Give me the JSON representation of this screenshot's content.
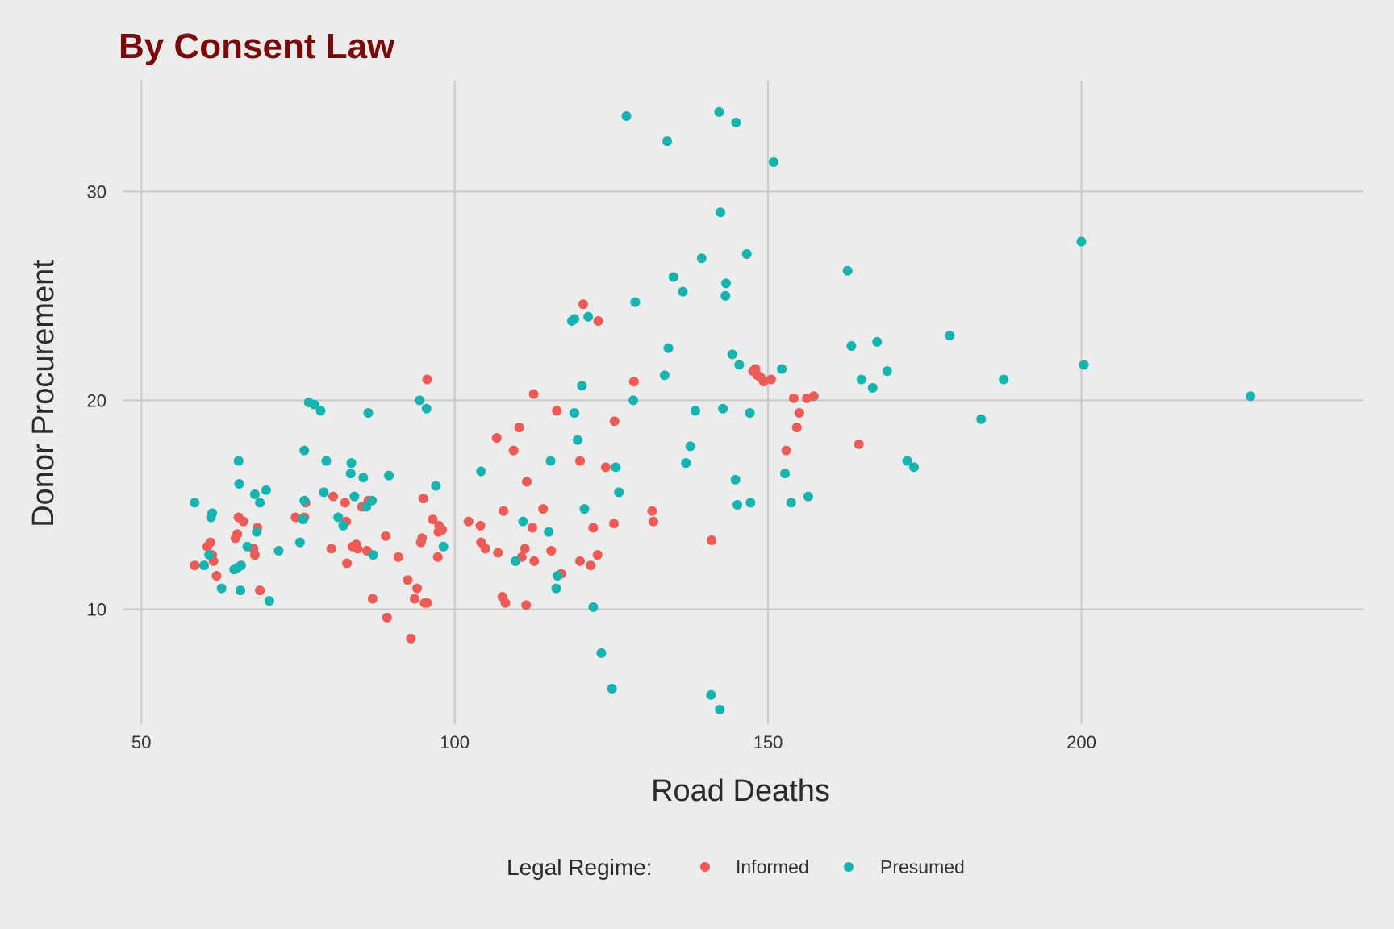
{
  "chart_data": {
    "type": "scatter",
    "title": "By Consent Law",
    "xlabel": "Road Deaths",
    "ylabel": "Donor Procurement",
    "xlim": [
      47,
      245
    ],
    "ylim": [
      4.5,
      35.3
    ],
    "x_ticks": [
      50,
      100,
      150,
      200
    ],
    "y_ticks": [
      10,
      20,
      30
    ],
    "grid": true,
    "legend_position": "bottom",
    "legend_title": "Legal Regime:",
    "colors": {
      "title": "#7a0a0a",
      "Informed": "#ee5b57",
      "Presumed": "#17b3b1"
    },
    "series": [
      {
        "name": "Informed",
        "color": "#ee5b57",
        "points": [
          [
            58.5,
            12.1
          ],
          [
            60.5,
            13.0
          ],
          [
            61.0,
            13.2
          ],
          [
            61.3,
            12.6
          ],
          [
            61.5,
            12.3
          ],
          [
            62.0,
            11.6
          ],
          [
            65.0,
            13.4
          ],
          [
            65.3,
            13.6
          ],
          [
            65.5,
            14.4
          ],
          [
            66.3,
            14.2
          ],
          [
            67.9,
            12.9
          ],
          [
            68.1,
            12.6
          ],
          [
            68.5,
            13.9
          ],
          [
            68.9,
            10.9
          ],
          [
            74.6,
            14.4
          ],
          [
            76.0,
            14.4
          ],
          [
            76.2,
            15.1
          ],
          [
            80.3,
            12.9
          ],
          [
            80.6,
            15.4
          ],
          [
            82.5,
            15.1
          ],
          [
            82.7,
            14.2
          ],
          [
            82.8,
            12.2
          ],
          [
            83.7,
            13.0
          ],
          [
            84.3,
            13.1
          ],
          [
            84.5,
            12.9
          ],
          [
            85.2,
            14.9
          ],
          [
            86.0,
            12.8
          ],
          [
            86.2,
            15.2
          ],
          [
            86.9,
            10.5
          ],
          [
            89.0,
            13.5
          ],
          [
            89.2,
            9.6
          ],
          [
            91.0,
            12.5
          ],
          [
            92.5,
            11.4
          ],
          [
            93.0,
            8.6
          ],
          [
            93.6,
            10.5
          ],
          [
            94.0,
            11.0
          ],
          [
            94.6,
            13.2
          ],
          [
            94.8,
            13.4
          ],
          [
            95.0,
            15.3
          ],
          [
            95.2,
            10.3
          ],
          [
            95.6,
            10.3
          ],
          [
            95.6,
            21.0
          ],
          [
            96.5,
            14.3
          ],
          [
            97.3,
            12.5
          ],
          [
            97.4,
            13.7
          ],
          [
            97.5,
            14.0
          ],
          [
            98.0,
            13.8
          ],
          [
            102.2,
            14.2
          ],
          [
            104.1,
            14.0
          ],
          [
            104.2,
            13.2
          ],
          [
            104.9,
            12.9
          ],
          [
            106.7,
            18.2
          ],
          [
            106.9,
            12.7
          ],
          [
            107.6,
            10.6
          ],
          [
            107.8,
            14.7
          ],
          [
            108.1,
            10.3
          ],
          [
            109.4,
            17.6
          ],
          [
            110.3,
            18.7
          ],
          [
            110.7,
            12.5
          ],
          [
            111.2,
            12.9
          ],
          [
            111.4,
            10.2
          ],
          [
            111.5,
            16.1
          ],
          [
            112.4,
            13.9
          ],
          [
            112.6,
            20.3
          ],
          [
            112.7,
            12.3
          ],
          [
            114.1,
            14.8
          ],
          [
            115.4,
            12.8
          ],
          [
            116.3,
            19.5
          ],
          [
            117.0,
            11.7
          ],
          [
            120.0,
            12.3
          ],
          [
            120.0,
            17.1
          ],
          [
            120.5,
            24.6
          ],
          [
            121.7,
            12.1
          ],
          [
            122.1,
            13.9
          ],
          [
            122.8,
            12.6
          ],
          [
            122.9,
            23.8
          ],
          [
            124.1,
            16.8
          ],
          [
            125.4,
            14.1
          ],
          [
            125.5,
            19.0
          ],
          [
            128.6,
            20.9
          ],
          [
            131.5,
            14.7
          ],
          [
            131.7,
            14.2
          ],
          [
            141.0,
            13.3
          ],
          [
            147.6,
            21.4
          ],
          [
            148.0,
            21.5
          ],
          [
            148.3,
            21.2
          ],
          [
            148.8,
            21.1
          ],
          [
            149.3,
            20.9
          ],
          [
            150.5,
            21.0
          ],
          [
            152.9,
            17.6
          ],
          [
            154.1,
            20.1
          ],
          [
            154.6,
            18.7
          ],
          [
            155.0,
            19.4
          ],
          [
            156.2,
            20.1
          ],
          [
            157.3,
            20.2
          ],
          [
            164.5,
            17.9
          ]
        ]
      },
      {
        "name": "Presumed",
        "color": "#17b3b1",
        "points": [
          [
            58.5,
            15.1
          ],
          [
            60.0,
            12.1
          ],
          [
            60.8,
            12.6
          ],
          [
            61.1,
            14.4
          ],
          [
            61.3,
            14.6
          ],
          [
            62.8,
            11.0
          ],
          [
            64.8,
            11.9
          ],
          [
            65.4,
            12.0
          ],
          [
            65.5,
            17.1
          ],
          [
            65.6,
            16.0
          ],
          [
            65.8,
            10.9
          ],
          [
            65.9,
            12.1
          ],
          [
            66.9,
            13.0
          ],
          [
            68.1,
            15.5
          ],
          [
            68.4,
            13.7
          ],
          [
            68.9,
            15.1
          ],
          [
            69.9,
            15.7
          ],
          [
            70.4,
            10.4
          ],
          [
            71.9,
            12.8
          ],
          [
            75.3,
            13.2
          ],
          [
            75.8,
            14.3
          ],
          [
            76.0,
            15.2
          ],
          [
            76.0,
            17.6
          ],
          [
            76.7,
            19.9
          ],
          [
            77.6,
            19.8
          ],
          [
            78.6,
            19.5
          ],
          [
            79.1,
            15.6
          ],
          [
            79.5,
            17.1
          ],
          [
            81.4,
            14.4
          ],
          [
            82.2,
            14.0
          ],
          [
            83.4,
            16.5
          ],
          [
            83.5,
            17.0
          ],
          [
            84.0,
            15.4
          ],
          [
            85.4,
            16.3
          ],
          [
            85.9,
            14.9
          ],
          [
            86.2,
            19.4
          ],
          [
            86.8,
            15.2
          ],
          [
            87.0,
            12.6
          ],
          [
            89.5,
            16.4
          ],
          [
            94.4,
            20.0
          ],
          [
            95.5,
            19.6
          ],
          [
            97.0,
            15.9
          ],
          [
            98.2,
            13.0
          ],
          [
            104.2,
            16.6
          ],
          [
            109.7,
            12.3
          ],
          [
            110.9,
            14.2
          ],
          [
            115.0,
            13.7
          ],
          [
            115.3,
            17.1
          ],
          [
            116.2,
            11.0
          ],
          [
            116.4,
            11.6
          ],
          [
            118.7,
            23.8
          ],
          [
            119.1,
            23.9
          ],
          [
            119.1,
            19.4
          ],
          [
            119.6,
            18.1
          ],
          [
            120.3,
            20.7
          ],
          [
            120.7,
            14.8
          ],
          [
            121.3,
            24.0
          ],
          [
            122.1,
            10.1
          ],
          [
            123.4,
            7.9
          ],
          [
            125.1,
            6.2
          ],
          [
            125.7,
            16.8
          ],
          [
            126.2,
            15.6
          ],
          [
            127.4,
            33.6
          ],
          [
            128.5,
            20.0
          ],
          [
            128.8,
            24.7
          ],
          [
            133.5,
            21.2
          ],
          [
            133.9,
            32.4
          ],
          [
            134.1,
            22.5
          ],
          [
            134.9,
            25.9
          ],
          [
            136.4,
            25.2
          ],
          [
            136.9,
            17.0
          ],
          [
            137.6,
            17.8
          ],
          [
            138.4,
            19.5
          ],
          [
            139.4,
            26.8
          ],
          [
            140.9,
            5.9
          ],
          [
            142.2,
            33.8
          ],
          [
            142.3,
            5.2
          ],
          [
            142.4,
            29.0
          ],
          [
            142.8,
            19.6
          ],
          [
            143.2,
            25.0
          ],
          [
            143.3,
            25.6
          ],
          [
            144.3,
            22.2
          ],
          [
            144.8,
            16.2
          ],
          [
            144.9,
            33.3
          ],
          [
            145.1,
            15.0
          ],
          [
            145.4,
            21.7
          ],
          [
            146.6,
            27.0
          ],
          [
            147.1,
            19.4
          ],
          [
            147.2,
            15.1
          ],
          [
            150.9,
            31.4
          ],
          [
            152.2,
            21.5
          ],
          [
            152.7,
            16.5
          ],
          [
            153.7,
            15.1
          ],
          [
            156.4,
            15.4
          ],
          [
            162.7,
            26.2
          ],
          [
            163.3,
            22.6
          ],
          [
            164.9,
            21.0
          ],
          [
            166.7,
            20.6
          ],
          [
            167.4,
            22.8
          ],
          [
            169.0,
            21.4
          ],
          [
            172.2,
            17.1
          ],
          [
            173.3,
            16.8
          ],
          [
            179.0,
            23.1
          ],
          [
            184.0,
            19.1
          ],
          [
            187.6,
            21.0
          ],
          [
            200.0,
            27.6
          ],
          [
            200.4,
            21.7
          ],
          [
            227.0,
            20.2
          ]
        ]
      }
    ]
  }
}
